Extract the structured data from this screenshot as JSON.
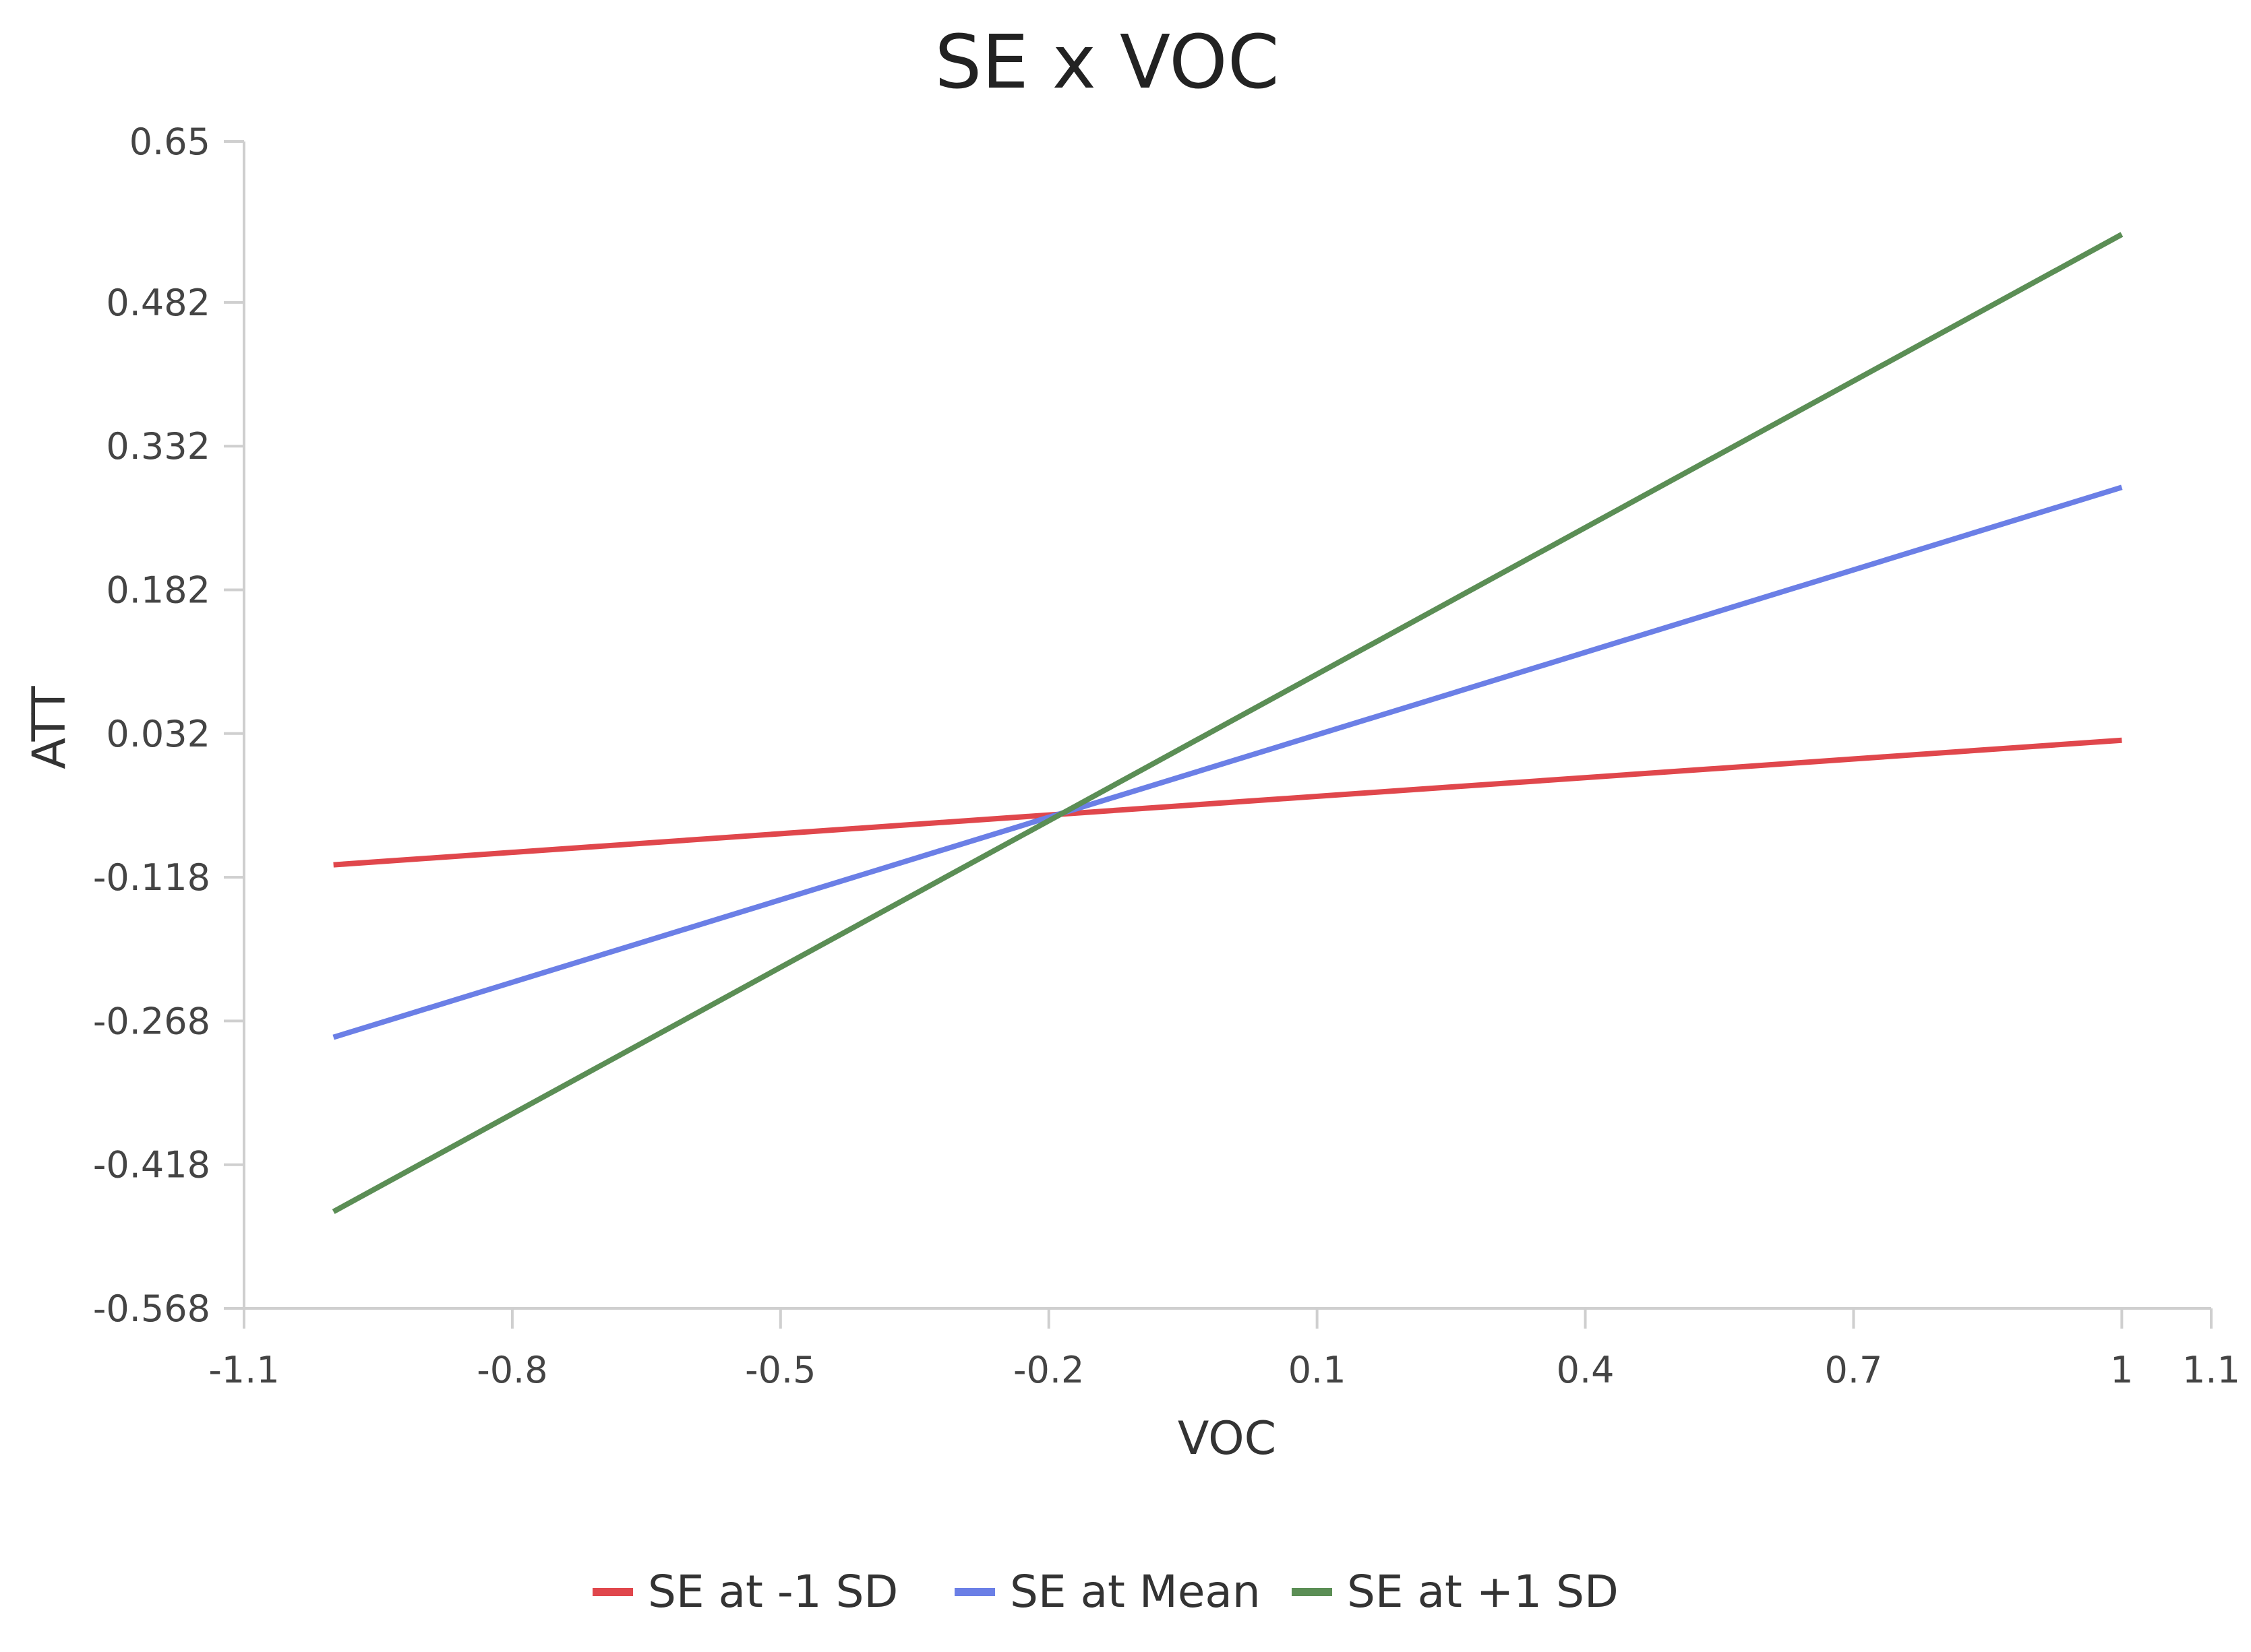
{
  "chart_data": {
    "type": "line",
    "title": "SE x VOC",
    "xlabel": "VOC",
    "ylabel": "ATT",
    "xlim": [
      -1.1,
      1.1
    ],
    "ylim": [
      -0.568,
      0.65
    ],
    "xticks": [
      "-1.1",
      "-0.8",
      "-0.5",
      "-0.2",
      "0.1",
      "0.4",
      "0.7",
      "1",
      "1.1"
    ],
    "yticks": [
      "0.65",
      "0.482",
      "0.332",
      "0.182",
      "0.032",
      "-0.118",
      "-0.268",
      "-0.418",
      "-0.568"
    ],
    "series": [
      {
        "name": "SE at -1 SD",
        "color": "#e0474c",
        "x": [
          -1,
          1
        ],
        "y": [
          -0.105,
          0.025
        ]
      },
      {
        "name": "SE at Mean",
        "color": "#6b7fe6",
        "x": [
          -1,
          1
        ],
        "y": [
          -0.285,
          0.289
        ]
      },
      {
        "name": "SE at +1 SD",
        "color": "#5b8e55",
        "x": [
          -1,
          1
        ],
        "y": [
          -0.467,
          0.553
        ]
      }
    ],
    "legend_position": "bottom-center",
    "grid": false
  }
}
